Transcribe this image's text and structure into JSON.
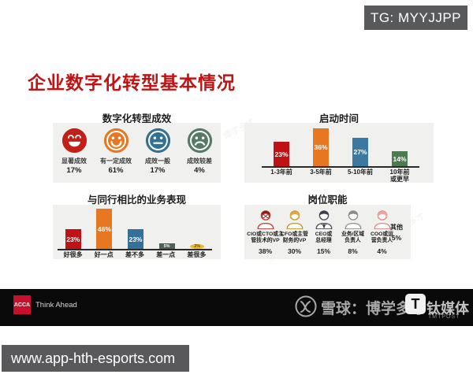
{
  "page": {
    "tg_badge": "TG: MYYJJPP",
    "url": "www.app-hth-esports.com"
  },
  "slide": {
    "title": "企业数字化转型基本情况",
    "watermark_text": "雪球：博学多才",
    "panels": {
      "effectiveness": {
        "title": "数字化转型成效",
        "items": [
          {
            "label": "显著成效",
            "pct": "17%",
            "icon": "laughing-face"
          },
          {
            "label": "有一定成效",
            "pct": "61%",
            "icon": "smiling-face"
          },
          {
            "label": "成效一般",
            "pct": "17%",
            "icon": "neutral-face"
          },
          {
            "label": "成效较差",
            "pct": "4%",
            "icon": "sad-face"
          }
        ]
      },
      "start_time": {
        "title": "启动时间",
        "bars": [
          {
            "label": "1-3年前",
            "pct": "23%",
            "color": "#c01115"
          },
          {
            "label": "3-5年前",
            "pct": "36%",
            "color": "#e87722"
          },
          {
            "label": "5-10年前",
            "pct": "27%",
            "color": "#3c79a1"
          },
          {
            "label": "10年前",
            "label2": "或更早",
            "pct": "14%",
            "color": "#4e7a52"
          }
        ]
      },
      "performance": {
        "title": "与同行相比的业务表现",
        "bars": [
          {
            "label": "好很多",
            "pct": "23%",
            "color": "#c01115"
          },
          {
            "label": "好一点",
            "pct": "46%",
            "color": "#e87722"
          },
          {
            "label": "差不多",
            "pct": "23%",
            "color": "#35709a"
          },
          {
            "label": "差一点",
            "pct": "5%",
            "color": "#4e6155"
          },
          {
            "label": "差很多",
            "pct": "2%",
            "color": "#eab833"
          }
        ]
      },
      "roles": {
        "title": "岗位职能",
        "items": [
          {
            "label1": "CIO或CTO或主",
            "label2": "管技术的VP",
            "pct": "38%",
            "icon": "person-cio"
          },
          {
            "label1": "CFO或主管",
            "label2": "财务的VP",
            "pct": "30%",
            "icon": "person-cfo"
          },
          {
            "label1": "CEO或",
            "label2": "总经理",
            "pct": "15%",
            "icon": "person-ceo"
          },
          {
            "label1": "业务/区域",
            "label2": "负责人",
            "pct": "8%",
            "icon": "person-business"
          },
          {
            "label1": "COO或运",
            "label2": "营负责人",
            "pct": "4%",
            "icon": "person-coo"
          }
        ],
        "other_label": "其他",
        "other_pct": "5%"
      }
    }
  },
  "footer": {
    "acca_logo": "ACCA",
    "acca_tagline": "Think Ahead",
    "xueqiu_text": "雪球：博学多才",
    "tmt_text": "钛媒体",
    "tmt_sub": "TMTPOST",
    "tmt_logo_letter": "T"
  },
  "chart_data": [
    {
      "type": "bar",
      "style": "emoji_pictogram",
      "title": "数字化转型成效",
      "categories": [
        "显著成效",
        "有一定成效",
        "成效一般",
        "成效较差"
      ],
      "values": [
        17,
        61,
        17,
        4
      ],
      "unit": "percent",
      "colors": [
        "#c22017",
        "#e87722",
        "#34708f",
        "#567a63"
      ],
      "icons": [
        "laughing-face",
        "smiling-face",
        "neutral-face",
        "sad-face"
      ]
    },
    {
      "type": "bar",
      "title": "启动时间",
      "categories": [
        "1-3年前",
        "3-5年前",
        "5-10年前",
        "10年前或更早"
      ],
      "values": [
        23,
        36,
        27,
        14
      ],
      "unit": "percent",
      "colors": [
        "#c01115",
        "#e87722",
        "#3c79a1",
        "#4e7a52"
      ],
      "value_labels": "inside bars",
      "ylim": [
        0,
        40
      ]
    },
    {
      "type": "bar",
      "title": "与同行相比的业务表现",
      "categories": [
        "好很多",
        "好一点",
        "差不多",
        "差一点",
        "差很多"
      ],
      "values": [
        23,
        46,
        23,
        5,
        2
      ],
      "unit": "percent",
      "colors": [
        "#c01115",
        "#e87722",
        "#35709a",
        "#4e6155",
        "#eab833"
      ],
      "value_labels": "inside bars",
      "ylim": [
        0,
        50
      ]
    },
    {
      "type": "bar",
      "style": "person_pictogram",
      "title": "岗位职能",
      "categories": [
        "CIO或CTO或主管技术的VP",
        "CFO或主管财务的VP",
        "CEO或总经理",
        "业务/区域负责人",
        "COO或运营负责人",
        "其他"
      ],
      "values": [
        38,
        30,
        15,
        8,
        4,
        5
      ],
      "unit": "percent"
    }
  ]
}
